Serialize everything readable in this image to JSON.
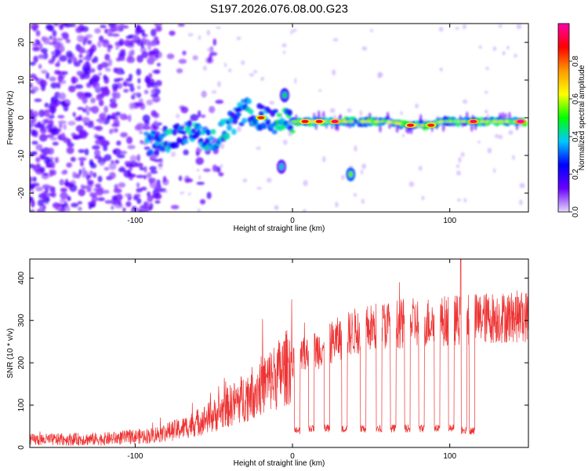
{
  "chart_data": [
    {
      "type": "heatmap",
      "title": "S197.2026.076.08.00.G23",
      "xlabel": "Height of straight line (km)",
      "ylabel": "Frequency (Hz)",
      "xlim": [
        -167,
        150
      ],
      "ylim": [
        -25,
        25
      ],
      "xticks": [
        -100,
        0,
        100
      ],
      "xtick_labels": [
        "-100",
        "0",
        "100"
      ],
      "yticks": [
        20,
        10,
        0,
        -10,
        -20
      ],
      "ytick_labels": [
        "20",
        "10",
        "0",
        "-10",
        "-20"
      ],
      "colorbar": {
        "label": "Normalized spectral amplitude",
        "range": [
          0,
          1
        ],
        "ticks": [
          0.0,
          0.2,
          0.4,
          0.6,
          0.8
        ],
        "tick_labels": [
          "0.0",
          "0.2",
          "0.4",
          "0.6",
          "0.8"
        ],
        "colors": [
          "#e6d9ff",
          "#6a00ff",
          "#0000ff",
          "#00c8ff",
          "#00ff00",
          "#ffff00",
          "#ff9900",
          "#ff0000",
          "#ff00aa"
        ]
      },
      "noise_region_x": [
        -167,
        -85
      ],
      "main_band": [
        {
          "x": -93,
          "f": -7
        },
        {
          "x": -75,
          "f": -5
        },
        {
          "x": -60,
          "f": -4
        },
        {
          "x": -50,
          "f": -6
        },
        {
          "x": -40,
          "f": -2
        },
        {
          "x": -30,
          "f": 2
        },
        {
          "x": -20,
          "f": 0
        },
        {
          "x": -10,
          "f": -1
        },
        {
          "x": 0,
          "f": -1
        },
        {
          "x": 10,
          "f": -1
        },
        {
          "x": 20,
          "f": -1
        },
        {
          "x": 30,
          "f": -1
        },
        {
          "x": 40,
          "f": -1
        },
        {
          "x": 50,
          "f": -1
        },
        {
          "x": 60,
          "f": -1
        },
        {
          "x": 75,
          "f": -2
        },
        {
          "x": 85,
          "f": -2
        },
        {
          "x": 95,
          "f": -1
        },
        {
          "x": 105,
          "f": -1
        },
        {
          "x": 120,
          "f": -1
        },
        {
          "x": 135,
          "f": -1
        },
        {
          "x": 148,
          "f": -1
        }
      ],
      "hot_spots": [
        {
          "x": -20,
          "f": 0,
          "a": 0.85
        },
        {
          "x": 8,
          "f": -1,
          "a": 0.9
        },
        {
          "x": 17,
          "f": -1,
          "a": 0.9
        },
        {
          "x": 27,
          "f": -1,
          "a": 0.95
        },
        {
          "x": 75,
          "f": -2,
          "a": 0.9
        },
        {
          "x": 88,
          "f": -2,
          "a": 0.85
        },
        {
          "x": 115,
          "f": -1,
          "a": 0.95
        },
        {
          "x": 145,
          "f": -1,
          "a": 1.0
        }
      ],
      "secondary_features": [
        {
          "x": 37,
          "f": -15,
          "a": 0.3
        },
        {
          "x": -5,
          "f": 6,
          "a": 0.2
        },
        {
          "x": -7,
          "f": -13,
          "a": 0.15
        }
      ]
    },
    {
      "type": "line",
      "xlabel": "Height of straight line (km)",
      "ylabel": "SNR (10 * v/v)",
      "xlim": [
        -167,
        150
      ],
      "ylim": [
        0,
        445
      ],
      "xticks": [
        -100,
        0,
        100
      ],
      "xtick_labels": [
        "-100",
        "0",
        "100"
      ],
      "yticks": [
        0,
        100,
        200,
        300,
        400
      ],
      "ytick_labels": [
        "0",
        "100",
        "200",
        "300",
        "400"
      ],
      "line_color": "#ee3333",
      "trend": [
        {
          "x": -167,
          "y": 18
        },
        {
          "x": -120,
          "y": 20
        },
        {
          "x": -90,
          "y": 28
        },
        {
          "x": -70,
          "y": 45
        },
        {
          "x": -50,
          "y": 75
        },
        {
          "x": -30,
          "y": 120
        },
        {
          "x": -10,
          "y": 170
        },
        {
          "x": 0,
          "y": 200
        },
        {
          "x": 20,
          "y": 240
        },
        {
          "x": 40,
          "y": 275
        },
        {
          "x": 60,
          "y": 290
        },
        {
          "x": 80,
          "y": 295
        },
        {
          "x": 100,
          "y": 300
        },
        {
          "x": 120,
          "y": 305
        },
        {
          "x": 150,
          "y": 310
        }
      ],
      "dropouts": [
        {
          "x": 3,
          "y": 40
        },
        {
          "x": 12,
          "y": 45
        },
        {
          "x": 22,
          "y": 45
        },
        {
          "x": 33,
          "y": 45
        },
        {
          "x": 45,
          "y": 45
        },
        {
          "x": 55,
          "y": 45
        },
        {
          "x": 64,
          "y": 45
        },
        {
          "x": 73,
          "y": 45
        },
        {
          "x": 82,
          "y": 45
        },
        {
          "x": 92,
          "y": 45
        },
        {
          "x": 101,
          "y": 45
        },
        {
          "x": 109,
          "y": 40
        },
        {
          "x": 114,
          "y": 40
        }
      ],
      "dropout_end_x": 116,
      "peak": {
        "x": 107,
        "y": 445
      }
    }
  ]
}
